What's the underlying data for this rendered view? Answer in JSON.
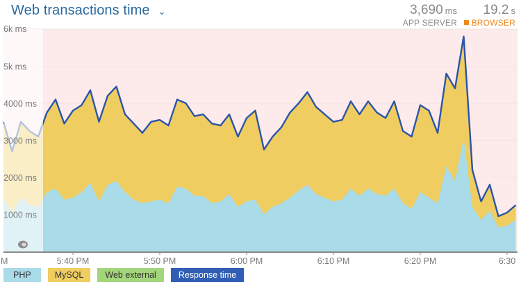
{
  "header": {
    "title": "Web transactions time",
    "dropdown_icon": "chevron-down-icon"
  },
  "stats": {
    "app_server": {
      "value": "3,690",
      "unit": "ms",
      "label": "APP SERVER"
    },
    "browser": {
      "value": "19.2",
      "unit": "s",
      "label": "BROWSER",
      "color": "#f08a20"
    }
  },
  "legend": [
    {
      "label": "PHP",
      "color": "#a9dbe8"
    },
    {
      "label": "MySQL",
      "color": "#f0cd60"
    },
    {
      "label": "Web external",
      "color": "#a3d57a"
    },
    {
      "label": "Response time",
      "color": "#2f5eb4"
    }
  ],
  "colors": {
    "php": "#a9dbe8",
    "mysql": "#f0cd60",
    "web_external": "#a3d57a",
    "response_line": "#2a55a8",
    "alert_bg": "#fdeaea",
    "faded_overlay": "rgba(255,255,255,0.65)",
    "grid": "#f3e2e2",
    "axis": "#888888"
  },
  "chart_data": {
    "type": "area",
    "title": "Web transactions time",
    "xlabel": "",
    "ylabel": "",
    "ylim": [
      0,
      6000
    ],
    "y_ticks": [
      {
        "value": 1000,
        "label": "1000 ms"
      },
      {
        "value": 2000,
        "label": "2000 ms"
      },
      {
        "value": 3000,
        "label": "3000 ms"
      },
      {
        "value": 4000,
        "label": "4000 ms"
      },
      {
        "value": 5000,
        "label": "5k ms"
      },
      {
        "value": 6000,
        "label": "6k ms"
      }
    ],
    "x_ticks": [
      {
        "minute": 8,
        "label": "5:40 PM"
      },
      {
        "minute": 18,
        "label": "5:50 PM"
      },
      {
        "minute": 28,
        "label": "6:00 PM"
      },
      {
        "minute": 38,
        "label": "6:10 PM"
      },
      {
        "minute": 48,
        "label": "6:20 PM"
      },
      {
        "minute": 58,
        "label": "6:30"
      }
    ],
    "x_start_label_partial": "M",
    "x_start_time": "5:32 PM",
    "faded_region_end_minute": 4.56,
    "x": [
      "5:32",
      "5:33",
      "5:34",
      "5:35",
      "5:36",
      "5:37",
      "5:38",
      "5:39",
      "5:40",
      "5:41",
      "5:42",
      "5:43",
      "5:44",
      "5:45",
      "5:46",
      "5:47",
      "5:48",
      "5:49",
      "5:50",
      "5:51",
      "5:52",
      "5:53",
      "5:54",
      "5:55",
      "5:56",
      "5:57",
      "5:58",
      "5:59",
      "6:00",
      "6:01",
      "6:02",
      "6:03",
      "6:04",
      "6:05",
      "6:06",
      "6:07",
      "6:08",
      "6:09",
      "6:10",
      "6:11",
      "6:12",
      "6:13",
      "6:14",
      "6:15",
      "6:16",
      "6:17",
      "6:18",
      "6:19",
      "6:20",
      "6:21",
      "6:22",
      "6:23",
      "6:24",
      "6:25",
      "6:26",
      "6:27",
      "6:28",
      "6:29",
      "6:30",
      "6:31"
    ],
    "series": [
      {
        "name": "PHP",
        "stacked": true,
        "values": [
          1400,
          1050,
          1450,
          1250,
          1200,
          1600,
          1700,
          1400,
          1450,
          1600,
          1850,
          1350,
          1800,
          1900,
          1600,
          1400,
          1300,
          1350,
          1400,
          1300,
          1750,
          1700,
          1500,
          1500,
          1300,
          1350,
          1550,
          1200,
          1350,
          1400,
          1000,
          1200,
          1300,
          1450,
          1650,
          1800,
          1550,
          1450,
          1350,
          1400,
          1700,
          1500,
          1700,
          1550,
          1500,
          1700,
          1300,
          1150,
          1600,
          1450,
          1300,
          2300,
          1900,
          3050,
          1200,
          850,
          1100,
          650,
          700,
          850
        ]
      },
      {
        "name": "MySQL",
        "stacked": true,
        "values": [
          2100,
          1650,
          2050,
          2000,
          1900,
          2150,
          2400,
          2050,
          2350,
          2350,
          2500,
          2150,
          2400,
          2550,
          2100,
          2050,
          1900,
          2150,
          2150,
          2100,
          2350,
          2300,
          2150,
          2200,
          2150,
          2050,
          2150,
          1900,
          2250,
          2400,
          1750,
          1900,
          2050,
          2300,
          2350,
          2500,
          2350,
          2250,
          2150,
          2150,
          2350,
          2200,
          2350,
          2200,
          2100,
          2350,
          1950,
          1950,
          2350,
          2350,
          1900,
          2500,
          2450,
          2750,
          1000,
          500,
          700,
          300,
          350,
          400
        ]
      },
      {
        "name": "Web external",
        "stacked": true,
        "values": [
          0,
          0,
          0,
          0,
          0,
          0,
          0,
          0,
          0,
          0,
          0,
          0,
          0,
          0,
          0,
          0,
          0,
          0,
          0,
          0,
          0,
          0,
          0,
          0,
          0,
          0,
          0,
          0,
          0,
          0,
          0,
          0,
          0,
          0,
          0,
          0,
          0,
          0,
          0,
          0,
          0,
          0,
          0,
          0,
          0,
          0,
          0,
          0,
          0,
          0,
          0,
          0,
          50,
          0,
          0,
          0,
          0,
          0,
          0,
          0
        ]
      },
      {
        "name": "Response time",
        "type": "line",
        "values": [
          3500,
          2700,
          3500,
          3250,
          3100,
          3750,
          4100,
          3450,
          3800,
          3950,
          4350,
          3500,
          4200,
          4450,
          3700,
          3450,
          3200,
          3500,
          3550,
          3400,
          4100,
          4000,
          3650,
          3700,
          3450,
          3400,
          3700,
          3100,
          3600,
          3800,
          2750,
          3100,
          3350,
          3750,
          4000,
          4300,
          3900,
          3700,
          3500,
          3550,
          4050,
          3700,
          4050,
          3750,
          3600,
          4050,
          3250,
          3100,
          3950,
          3800,
          3200,
          4800,
          4400,
          5800,
          2200,
          1350,
          1800,
          950,
          1050,
          1250
        ]
      }
    ],
    "legend_position": "bottom",
    "grid": true
  }
}
